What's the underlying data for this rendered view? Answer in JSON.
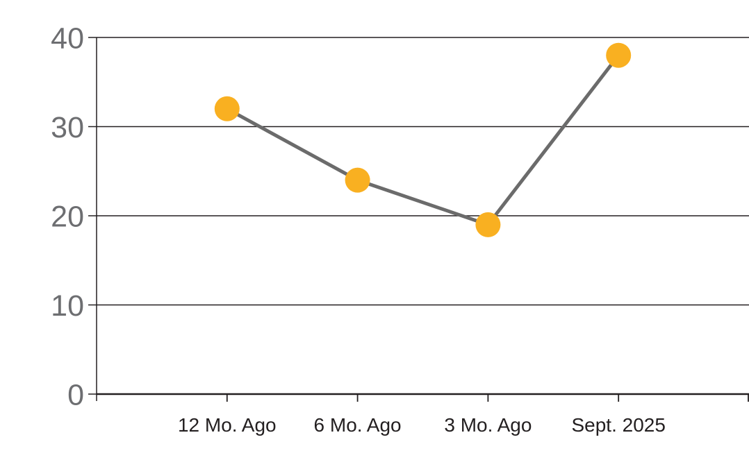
{
  "chart_data": {
    "type": "line",
    "categories": [
      "12 Mo. Ago",
      "6 Mo. Ago",
      "3 Mo. Ago",
      "Sept. 2025"
    ],
    "values": [
      32,
      24,
      19,
      38
    ],
    "yticks": [
      0,
      10,
      20,
      30,
      40
    ],
    "ylim": [
      0,
      40
    ],
    "title": "",
    "xlabel": "",
    "ylabel": "",
    "grid": "horizontal",
    "legend_position": "none",
    "colors": {
      "marker": "#F9B021",
      "line": "#6B6B6B",
      "y_label": "#6D6E71",
      "x_label": "#231F20",
      "gridline": "#231F20",
      "axis": "#231F20",
      "background": "#FFFFFF"
    }
  }
}
